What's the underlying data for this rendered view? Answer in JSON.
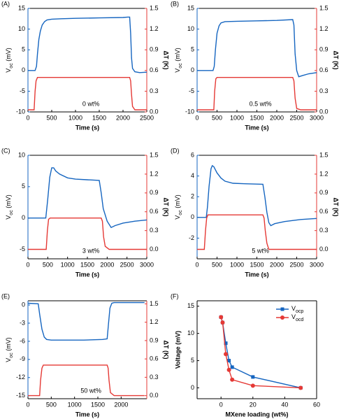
{
  "chart_data": [
    {
      "type": "line",
      "panel": "(A)",
      "annotation": "0 wt%",
      "x_label": "Time (s)",
      "y_label": "Voc (mV)",
      "y2_label": "ΔT (K)",
      "xlim": [
        0,
        2500
      ],
      "xticks": [
        0,
        500,
        1000,
        1500,
        2000,
        2500
      ],
      "ylim": [
        -10,
        15
      ],
      "yticks": [
        -10,
        -5,
        0,
        5,
        10,
        15
      ],
      "y2lim": [
        0,
        1.5
      ],
      "y2ticks": [
        {
          "value": 0,
          "label": "0.0"
        },
        0.3,
        0.6,
        0.9,
        1.2,
        1.5
      ],
      "series": [
        {
          "color": "#1565c0",
          "axis": "y",
          "x": [
            0,
            150,
            180,
            200,
            230,
            260,
            300,
            350,
            400,
            500,
            700,
            1000,
            1500,
            2000,
            2100,
            2140,
            2160,
            2180,
            2200,
            2250,
            2350,
            2500
          ],
          "values": [
            0,
            0,
            1,
            4,
            7.5,
            9.5,
            11,
            11.8,
            12.2,
            12.4,
            12.5,
            12.6,
            12.7,
            12.8,
            12.9,
            12.9,
            9,
            3,
            0.5,
            -0.3,
            -0.5,
            -0.4
          ]
        },
        {
          "color": "#e53935",
          "axis": "y2",
          "x": [
            0,
            130,
            150,
            170,
            200,
            2140,
            2160,
            2180,
            2200,
            2250,
            2500
          ],
          "values": [
            0.03,
            0.03,
            0.3,
            0.45,
            0.5,
            0.5,
            0.45,
            0.25,
            0.08,
            0.03,
            0.03
          ]
        }
      ]
    },
    {
      "type": "line",
      "panel": "(B)",
      "annotation": "0.5 wt%",
      "x_label": "Time (s)",
      "y_label": "Voc (mV)",
      "y2_label": "ΔT (K)",
      "xlim": [
        0,
        3000
      ],
      "xticks": [
        0,
        500,
        1000,
        1500,
        2000,
        2500,
        3000
      ],
      "ylim": [
        -10,
        15
      ],
      "yticks": [
        -10,
        -5,
        0,
        5,
        10,
        15
      ],
      "y2lim": [
        0,
        1.5
      ],
      "y2ticks": [
        {
          "value": 0,
          "label": "0.0"
        },
        0.3,
        0.6,
        0.9,
        1.2,
        1.5
      ],
      "series": [
        {
          "color": "#1565c0",
          "axis": "y",
          "x": [
            0,
            400,
            430,
            460,
            500,
            550,
            600,
            700,
            1000,
            1500,
            2000,
            2400,
            2430,
            2460,
            2500,
            2550,
            2650,
            2800,
            3000
          ],
          "values": [
            0,
            0,
            1,
            5,
            9,
            10.8,
            11.5,
            11.8,
            11.9,
            12,
            12.1,
            12.3,
            11,
            4,
            0,
            -1.5,
            -1.2,
            -0.8,
            -0.5
          ]
        },
        {
          "color": "#e53935",
          "axis": "y2",
          "x": [
            0,
            420,
            440,
            470,
            500,
            2400,
            2430,
            2460,
            2500,
            2600,
            3000
          ],
          "values": [
            0.03,
            0.03,
            0.3,
            0.48,
            0.5,
            0.5,
            0.45,
            0.2,
            0.05,
            0.03,
            0.03
          ]
        }
      ]
    },
    {
      "type": "line",
      "panel": "(C)",
      "annotation": "3 wt%",
      "x_label": "Time (s)",
      "y_label": "Voc (mV)",
      "y2_label": "ΔT (K)",
      "xlim": [
        0,
        3000
      ],
      "xticks": [
        0,
        500,
        1000,
        1500,
        2000,
        2500,
        3000
      ],
      "ylim": [
        -6.5,
        10
      ],
      "yticks": [
        -5,
        0,
        5,
        10
      ],
      "y2lim": [
        -0.15,
        1.5
      ],
      "y2ticks": [
        {
          "value": 0,
          "label": "0.0"
        },
        0.3,
        0.6,
        0.9,
        1.2,
        1.5
      ],
      "series": [
        {
          "color": "#1565c0",
          "axis": "y",
          "x": [
            0,
            450,
            500,
            550,
            600,
            650,
            700,
            800,
            1000,
            1200,
            1500,
            1800,
            1850,
            1900,
            2000,
            2100,
            2200,
            2400,
            2700,
            3000
          ],
          "values": [
            0,
            0,
            3,
            6.5,
            8,
            8,
            7.5,
            7,
            6.4,
            6.2,
            6.1,
            6,
            4,
            1.5,
            -0.5,
            -1.5,
            -1.2,
            -0.8,
            -0.5,
            -0.3
          ]
        },
        {
          "color": "#e53935",
          "axis": "y2",
          "x": [
            0,
            460,
            490,
            520,
            560,
            1850,
            1880,
            1910,
            1950,
            2050,
            3000
          ],
          "values": [
            0,
            0,
            0.3,
            0.48,
            0.5,
            0.5,
            0.45,
            0.2,
            0.05,
            0,
            0
          ]
        }
      ]
    },
    {
      "type": "line",
      "panel": "(D)",
      "annotation": "5 wt%",
      "x_label": "Time (s)",
      "y_label": "Voc (mV)",
      "y2_label": "ΔT (K)",
      "xlim": [
        0,
        3000
      ],
      "xticks": [
        0,
        500,
        1000,
        1500,
        2000,
        2500,
        3000
      ],
      "ylim": [
        -4,
        6
      ],
      "yticks": [
        -2,
        0,
        2,
        4,
        6
      ],
      "y2lim": [
        -0.15,
        1.5
      ],
      "y2ticks": [
        {
          "value": 0,
          "label": "0.0"
        },
        0.3,
        0.6,
        0.9,
        1.2,
        1.5
      ],
      "series": [
        {
          "color": "#1565c0",
          "axis": "y",
          "x": [
            0,
            230,
            260,
            300,
            350,
            380,
            420,
            500,
            600,
            700,
            900,
            1200,
            1650,
            1700,
            1750,
            1800,
            1850,
            1950,
            2200,
            2600,
            3000
          ],
          "values": [
            0,
            0,
            1,
            3,
            4.7,
            5,
            4.9,
            4.3,
            3.8,
            3.5,
            3.3,
            3.25,
            3.2,
            2,
            0.5,
            -0.5,
            -0.8,
            -0.6,
            -0.4,
            -0.2,
            -0.1
          ]
        },
        {
          "color": "#e53935",
          "axis": "y2",
          "x": [
            0,
            180,
            210,
            240,
            270,
            1650,
            1680,
            1710,
            1750,
            1800,
            3000
          ],
          "values": [
            0,
            0,
            0.3,
            0.5,
            0.55,
            0.55,
            0.5,
            0.3,
            0.1,
            0,
            0
          ]
        }
      ]
    },
    {
      "type": "line",
      "panel": "(E)",
      "annotation": "50 wt%",
      "x_label": "Time (s)",
      "y_label": "Voc (mV)",
      "y2_label": "ΔT (K)",
      "xlim": [
        0,
        2550
      ],
      "xticks": [
        0,
        500,
        1000,
        1500,
        2000
      ],
      "ylim": [
        -15.5,
        0.7
      ],
      "yticks": [
        -15,
        -12,
        -9,
        -6,
        -3,
        0
      ],
      "y2lim": [
        -0.05,
        1.55
      ],
      "y2ticks": [
        {
          "value": 0,
          "label": "0.0"
        },
        0.3,
        0.6,
        0.9,
        1.2,
        1.5
      ],
      "series": [
        {
          "color": "#1565c0",
          "axis": "y",
          "x": [
            0,
            220,
            250,
            300,
            350,
            400,
            500,
            800,
            1200,
            1600,
            1700,
            1730,
            1760,
            1800,
            1850,
            2000,
            2500
          ],
          "values": [
            0.3,
            0.2,
            -1.5,
            -4,
            -5.3,
            -5.7,
            -5.8,
            -5.8,
            -5.8,
            -5.7,
            -5.6,
            -3,
            -0.5,
            0.3,
            0.4,
            0.4,
            0.4
          ]
        },
        {
          "color": "#e53935",
          "axis": "y2",
          "x": [
            0,
            250,
            270,
            300,
            330,
            1700,
            1720,
            1740,
            1770,
            1850,
            2500
          ],
          "values": [
            0,
            0,
            0.25,
            0.45,
            0.5,
            0.5,
            0.45,
            0.25,
            0.05,
            0,
            0
          ]
        }
      ]
    },
    {
      "type": "line",
      "panel": "(F)",
      "x_label": "MXene loading (wt%)",
      "y_label": "Voltage (mV)",
      "xlim": [
        -15,
        60
      ],
      "xticks": [
        0,
        20,
        40,
        60
      ],
      "ylim": [
        -2,
        16
      ],
      "yticks": [
        0,
        5,
        10,
        15
      ],
      "legend": "upper right",
      "series": [
        {
          "name": "Vocp",
          "color": "#1565c0",
          "marker": "square",
          "x": [
            0,
            1,
            3,
            5,
            7,
            20,
            50
          ],
          "values": [
            13,
            12,
            8.2,
            5,
            3.8,
            2,
            0
          ]
        },
        {
          "name": "Vocd",
          "color": "#e53935",
          "marker": "circle",
          "x": [
            0,
            1,
            3,
            5,
            7,
            20,
            50
          ],
          "values": [
            13,
            12,
            6.2,
            3.3,
            1.5,
            0.4,
            0
          ]
        }
      ]
    }
  ]
}
